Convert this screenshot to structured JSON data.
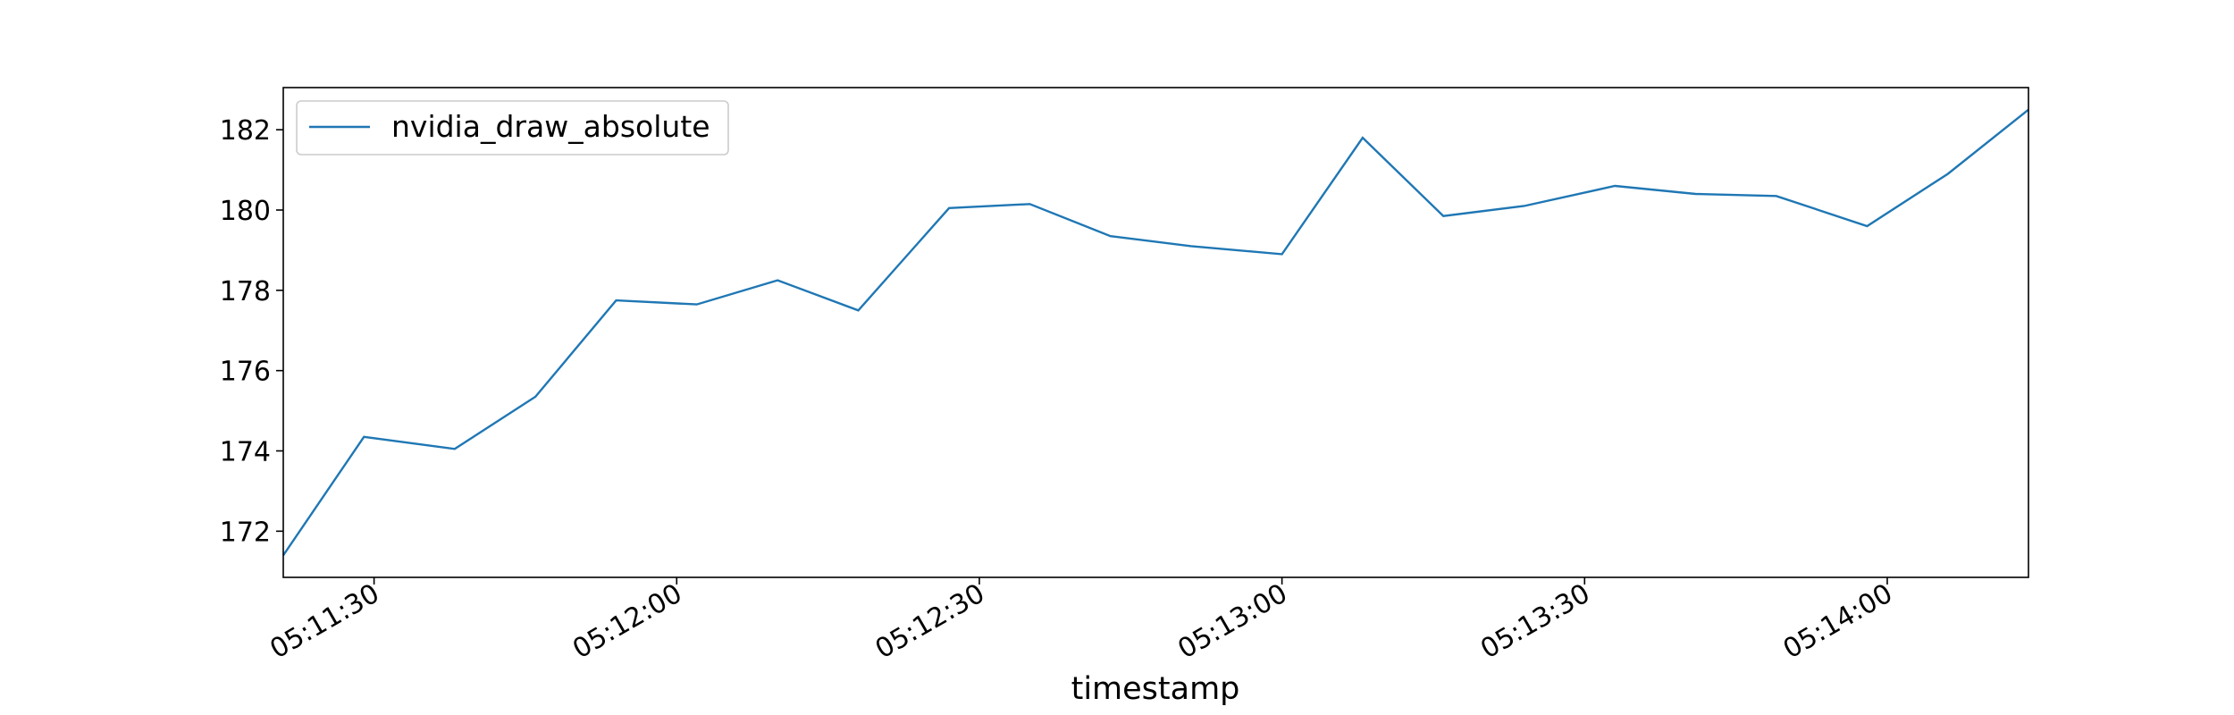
{
  "chart_data": {
    "type": "line",
    "title": "",
    "xlabel": "timestamp",
    "ylabel": "",
    "x": [
      "05:11:21",
      "05:11:29",
      "05:11:38",
      "05:11:46",
      "05:11:54",
      "05:12:02",
      "05:12:10",
      "05:12:18",
      "05:12:27",
      "05:12:35",
      "05:12:43",
      "05:12:51",
      "05:13:00",
      "05:13:08",
      "05:13:16",
      "05:13:24",
      "05:13:33",
      "05:13:41",
      "05:13:49",
      "05:13:58",
      "05:14:06",
      "05:14:14"
    ],
    "series": [
      {
        "name": "nvidia_draw_absolute",
        "color": "#1f77b4",
        "values": [
          171.4,
          174.35,
          174.05,
          175.35,
          177.75,
          177.65,
          178.25,
          177.5,
          180.05,
          180.15,
          179.35,
          179.1,
          178.9,
          181.8,
          179.85,
          180.1,
          180.6,
          180.4,
          180.35,
          179.6,
          180.9,
          182.5
        ]
      }
    ],
    "xlim": [
      "05:11:21",
      "05:14:14"
    ],
    "ylim": [
      170.85,
      183.05
    ],
    "xticks": [
      "05:11:30",
      "05:12:00",
      "05:12:30",
      "05:13:00",
      "05:13:30",
      "05:14:00"
    ],
    "yticks": [
      172,
      174,
      176,
      178,
      180,
      182
    ],
    "grid": false,
    "legend_position": "top-left"
  }
}
